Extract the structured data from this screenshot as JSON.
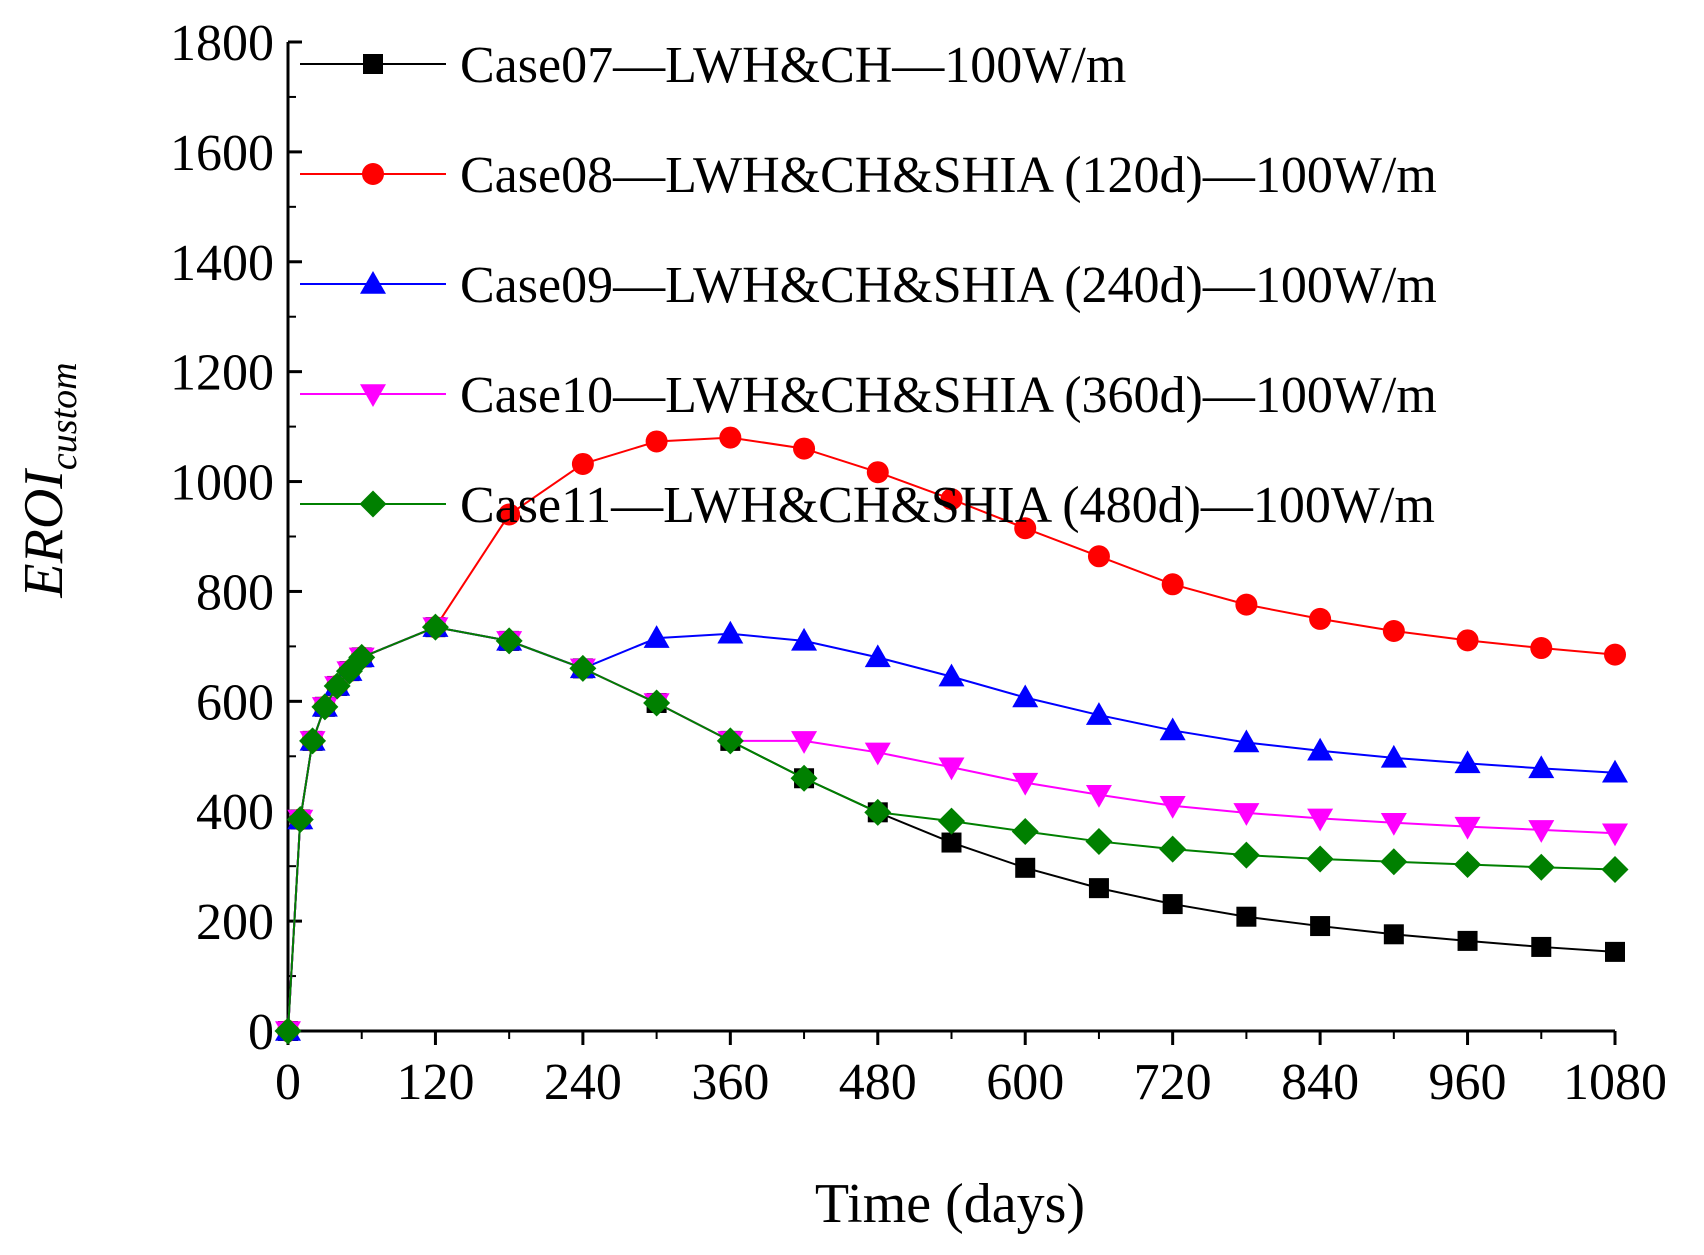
{
  "chart_data": {
    "type": "line",
    "title": "",
    "xlabel": "Time (days)",
    "ylabel": "EROI",
    "ylabel_subscript": "custom",
    "xlim": [
      0,
      1080
    ],
    "ylim": [
      0,
      1800
    ],
    "xticks": [
      0,
      120,
      240,
      360,
      480,
      600,
      720,
      840,
      960,
      1080
    ],
    "yticks": [
      0,
      200,
      400,
      600,
      800,
      1000,
      1200,
      1400,
      1600,
      1800
    ],
    "legend_position": "top-right",
    "series": [
      {
        "name": "Case07—LWH&CH—100W/m",
        "color": "#000000",
        "marker": "square",
        "x": [
          0,
          10,
          20,
          30,
          40,
          50,
          60,
          120,
          180,
          240,
          300,
          360,
          420,
          480,
          540,
          600,
          660,
          720,
          780,
          840,
          900,
          960,
          1020,
          1080
        ],
        "y": [
          0,
          385,
          528,
          590,
          628,
          655,
          680,
          735,
          710,
          660,
          597,
          528,
          460,
          398,
          343,
          297,
          260,
          231,
          208,
          191,
          176,
          164,
          153,
          144
        ]
      },
      {
        "name": "Case08—LWH&CH&SHIA (120d)—100W/m",
        "color": "#ff0000",
        "marker": "circle",
        "x": [
          0,
          10,
          20,
          30,
          40,
          50,
          60,
          120,
          180,
          240,
          300,
          360,
          420,
          480,
          540,
          600,
          660,
          720,
          780,
          840,
          900,
          960,
          1020,
          1080
        ],
        "y": [
          0,
          385,
          528,
          590,
          628,
          655,
          680,
          735,
          940,
          1032,
          1073,
          1080,
          1060,
          1017,
          968,
          915,
          864,
          813,
          776,
          750,
          728,
          711,
          697,
          685
        ]
      },
      {
        "name": "Case09—LWH&CH&SHIA (240d)—100W/m",
        "color": "#0000ff",
        "marker": "triangle-up",
        "x": [
          0,
          10,
          20,
          30,
          40,
          50,
          60,
          120,
          180,
          240,
          300,
          360,
          420,
          480,
          540,
          600,
          660,
          720,
          780,
          840,
          900,
          960,
          1020,
          1080
        ],
        "y": [
          0,
          385,
          528,
          590,
          628,
          655,
          680,
          735,
          710,
          660,
          715,
          723,
          710,
          680,
          645,
          607,
          575,
          547,
          525,
          510,
          497,
          487,
          478,
          470
        ]
      },
      {
        "name": "Case10—LWH&CH&SHIA (360d)—100W/m",
        "color": "#ff00ff",
        "marker": "triangle-down",
        "x": [
          0,
          10,
          20,
          30,
          40,
          50,
          60,
          120,
          180,
          240,
          300,
          360,
          420,
          480,
          540,
          600,
          660,
          720,
          780,
          840,
          900,
          960,
          1020,
          1080
        ],
        "y": [
          0,
          385,
          528,
          590,
          628,
          655,
          680,
          735,
          710,
          660,
          597,
          528,
          528,
          507,
          480,
          452,
          430,
          410,
          397,
          387,
          379,
          372,
          366,
          360
        ]
      },
      {
        "name": "Case11—LWH&CH&SHIA (480d)—100W/m",
        "color": "#008000",
        "marker": "diamond",
        "x": [
          0,
          10,
          20,
          30,
          40,
          50,
          60,
          120,
          180,
          240,
          300,
          360,
          420,
          480,
          540,
          600,
          660,
          720,
          780,
          840,
          900,
          960,
          1020,
          1080
        ],
        "y": [
          0,
          385,
          528,
          590,
          628,
          655,
          680,
          735,
          710,
          660,
          597,
          528,
          460,
          398,
          382,
          363,
          345,
          331,
          320,
          313,
          308,
          303,
          298,
          294
        ]
      }
    ]
  }
}
